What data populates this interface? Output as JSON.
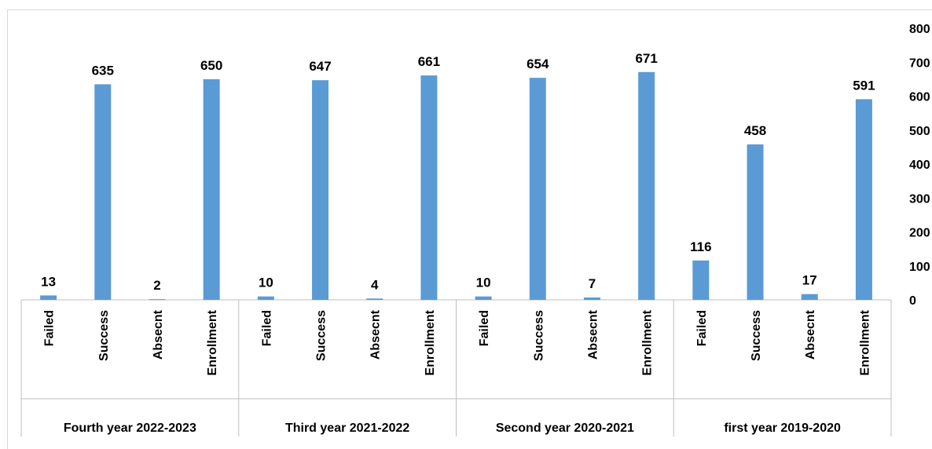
{
  "chart_data": {
    "type": "bar",
    "title": "",
    "xlabel": "",
    "ylabel": "",
    "ylim": [
      0,
      800
    ],
    "yticks": [
      0,
      100,
      200,
      300,
      400,
      500,
      600,
      700,
      800
    ],
    "grid": false,
    "legend": "none",
    "bar_color": "#5b9bd5",
    "groups": [
      {
        "label": "Fourth year 2022-2023",
        "categories": [
          "Failed",
          "Success",
          "Absecnt",
          "Enrollment"
        ],
        "values": [
          13,
          635,
          2,
          650
        ]
      },
      {
        "label": "Third year 2021-2022",
        "categories": [
          "Failed",
          "Success",
          "Absecnt",
          "Enrollment"
        ],
        "values": [
          10,
          647,
          4,
          661
        ]
      },
      {
        "label": "Second year 2020-2021",
        "categories": [
          "Failed",
          "Success",
          "Absecnt",
          "Enrollment"
        ],
        "values": [
          10,
          654,
          7,
          671
        ]
      },
      {
        "label": "first year 2019-2020",
        "categories": [
          "Failed",
          "Success",
          "Absecnt",
          "Enrollment"
        ],
        "values": [
          116,
          458,
          17,
          591
        ]
      }
    ]
  }
}
